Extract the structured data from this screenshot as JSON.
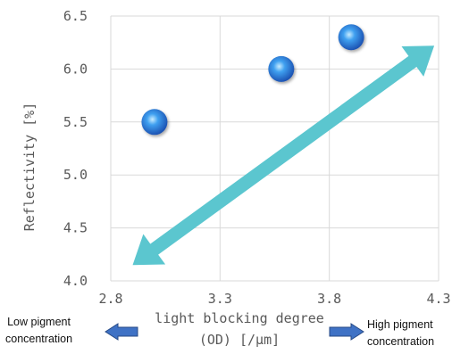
{
  "chart_data": {
    "type": "scatter",
    "title": "",
    "xlabel_line1": "light blocking degree",
    "xlabel_line2": "(OD) [/μm]",
    "ylabel": "Reflectivity [%]",
    "xlim": [
      2.8,
      4.3
    ],
    "ylim": [
      4.0,
      6.5
    ],
    "x_ticks": [
      "2.8",
      "3.3",
      "3.8",
      "4.3"
    ],
    "y_ticks": [
      "4.0",
      "4.5",
      "5.0",
      "5.5",
      "6.0",
      "6.5"
    ],
    "grid": true,
    "points": [
      {
        "x": 3.0,
        "y": 5.5
      },
      {
        "x": 3.58,
        "y": 6.0
      },
      {
        "x": 3.9,
        "y": 6.3
      }
    ],
    "trend_arrow": {
      "from": [
        2.9,
        4.15
      ],
      "to": [
        4.28,
        6.22
      ],
      "double_headed": true
    },
    "colors": {
      "point": "#1f5fd1",
      "point_highlight": "#bfe6ff",
      "trend_arrow": "#5bc6cf",
      "side_arrow": "#3f72c5",
      "grid": "#d9d9d9"
    }
  },
  "annotations": {
    "low_line1": "Low pigment",
    "low_line2": "concentration",
    "high_line1": "High pigment",
    "high_line2": "concentration"
  }
}
